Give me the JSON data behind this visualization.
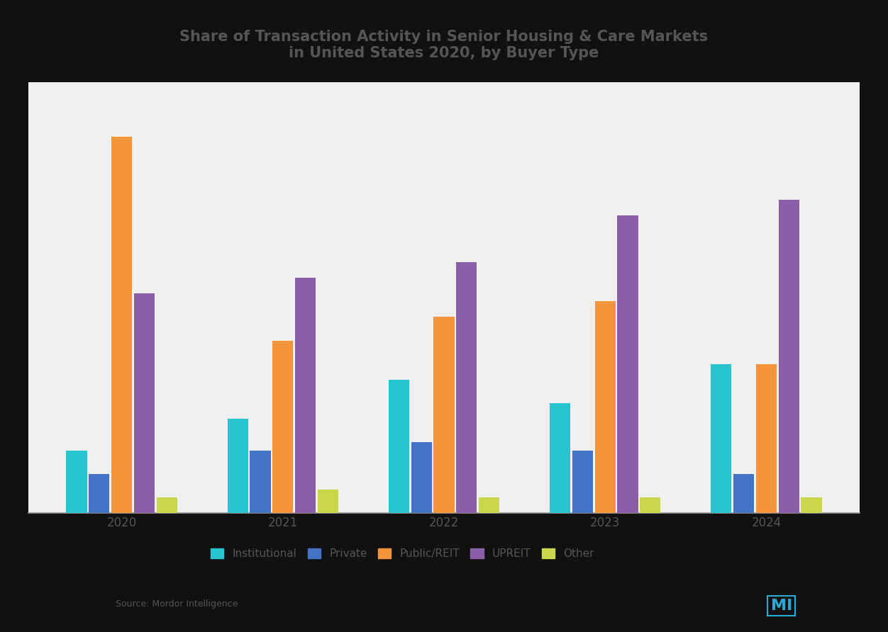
{
  "title_line1": "Share of Transaction Activity in Senior Housing & Care Markets",
  "title_line2": "in United States 2020, by Buyer Type",
  "years": [
    "2020",
    "2021",
    "2022",
    "2023",
    "2024"
  ],
  "categories": [
    "Institutional",
    "Private",
    "Public/REIT",
    "UPREIT",
    "Other"
  ],
  "colors": [
    "#29C4D0",
    "#4472C4",
    "#F5943A",
    "#8B5EA8",
    "#C8D84A"
  ],
  "values": [
    [
      8,
      5,
      48,
      28,
      2
    ],
    [
      12,
      8,
      22,
      30,
      3
    ],
    [
      17,
      9,
      25,
      32,
      2
    ],
    [
      14,
      8,
      27,
      38,
      2
    ],
    [
      19,
      5,
      19,
      40,
      2
    ]
  ],
  "ylim_max": 55,
  "background_color": "#111111",
  "plot_bg": "#f0f0f0",
  "axis_line_color": "#999999",
  "text_color": "#555555",
  "title_color": "#555555",
  "bar_width": 0.14,
  "legend_labels": [
    "Institutional",
    "Private",
    "Public/REIT",
    "UPREIT",
    "Other"
  ],
  "source_text": "Source: Mordor Intelligence"
}
